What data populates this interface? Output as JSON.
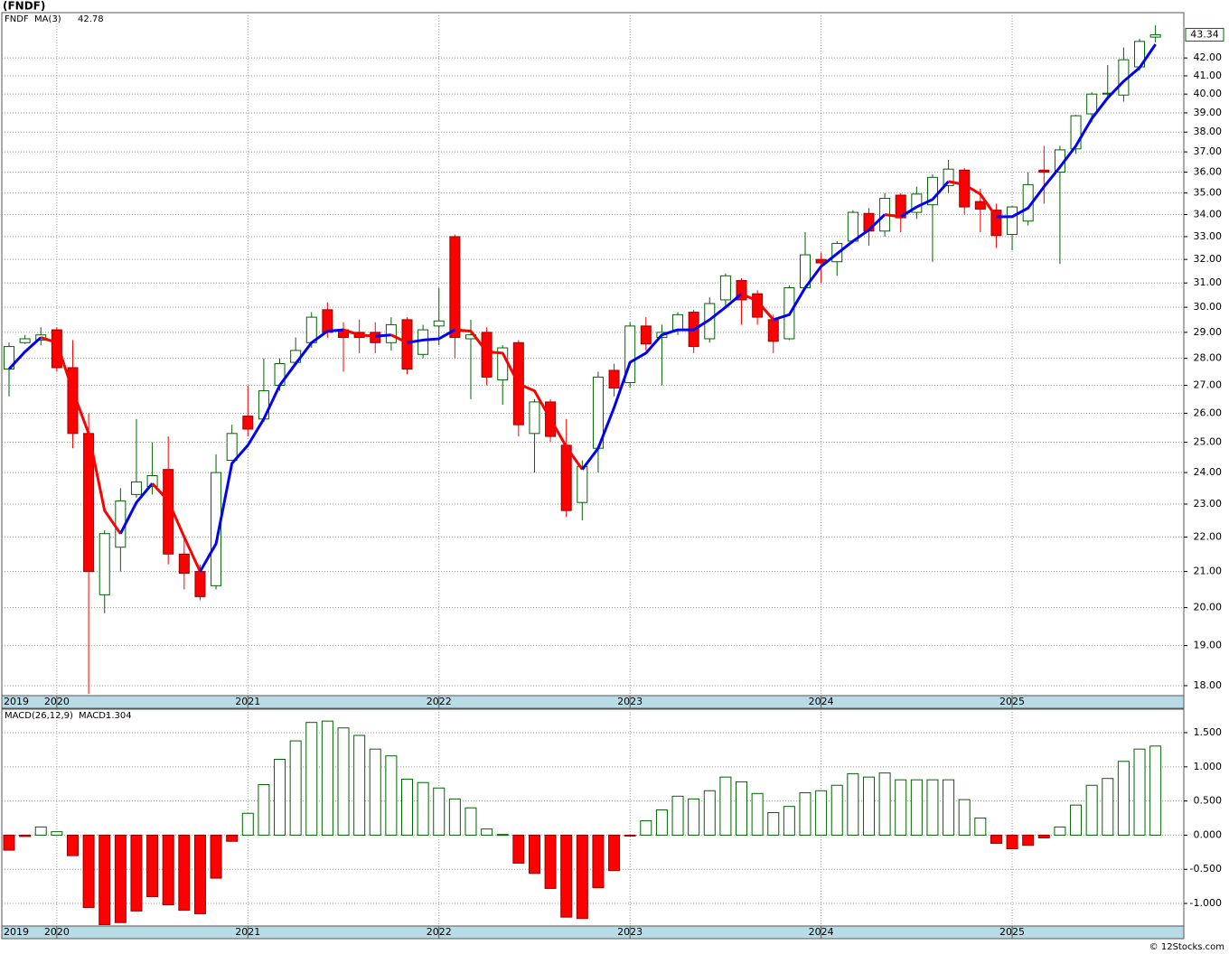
{
  "chart_data": [
    {
      "type": "candlestick",
      "title": "(FNDF)",
      "log": true,
      "categories": [
        "2019",
        null,
        null,
        "2020",
        null,
        null,
        null,
        null,
        null,
        null,
        null,
        null,
        null,
        null,
        null,
        "2021",
        null,
        null,
        null,
        null,
        null,
        null,
        null,
        null,
        null,
        null,
        null,
        "2022",
        null,
        null,
        null,
        null,
        null,
        null,
        null,
        null,
        null,
        null,
        null,
        "2023",
        null,
        null,
        null,
        null,
        null,
        null,
        null,
        null,
        null,
        null,
        null,
        "2024",
        null,
        null,
        null,
        null,
        null,
        null,
        null,
        null,
        null,
        null,
        null,
        "2025",
        null,
        null,
        null,
        null,
        null,
        null,
        null,
        null,
        null
      ],
      "ylim": [
        17.76,
        44.65
      ],
      "yticks": [
        {
          "value": 18,
          "label": "18.00"
        },
        {
          "value": 19,
          "label": "19.00"
        },
        {
          "value": 20,
          "label": "20.00"
        },
        {
          "value": 21,
          "label": "21.00"
        },
        {
          "value": 22,
          "label": "22.00"
        },
        {
          "value": 23,
          "label": "23.00"
        },
        {
          "value": 24,
          "label": "24.00"
        },
        {
          "value": 25,
          "label": "25.00"
        },
        {
          "value": 26,
          "label": "26.00"
        },
        {
          "value": 27,
          "label": "27.00"
        },
        {
          "value": 28,
          "label": "28.00"
        },
        {
          "value": 29,
          "label": "29.00"
        },
        {
          "value": 30,
          "label": "30.00"
        },
        {
          "value": 31,
          "label": "31.00"
        },
        {
          "value": 32,
          "label": "32.00"
        },
        {
          "value": 33,
          "label": "33.00"
        },
        {
          "value": 34,
          "label": "34.00"
        },
        {
          "value": 35,
          "label": "35.00"
        },
        {
          "value": 36,
          "label": "36.00"
        },
        {
          "value": 37,
          "label": "37.00"
        },
        {
          "value": 38,
          "label": "38.00"
        },
        {
          "value": 39,
          "label": "39.00"
        },
        {
          "value": 40,
          "label": "40.00"
        },
        {
          "value": 41,
          "label": "41.00"
        },
        {
          "value": 42,
          "label": "42.00"
        }
      ],
      "grid": true,
      "series": [
        {
          "name": "FNDF",
          "color": "#006400",
          "down_color": "#ff0000",
          "open": [
            27.6,
            28.6,
            28.7,
            29.1,
            27.65,
            25.3,
            20.35,
            21.7,
            23.3,
            23.55,
            24.1,
            21.5,
            21.0,
            20.6,
            24.4,
            25.9,
            25.8,
            27.0,
            27.85,
            28.6,
            29.9,
            29.1,
            29.0,
            29.0,
            28.6,
            29.5,
            28.15,
            29.25,
            33.0,
            28.75,
            29.0,
            27.2,
            28.6,
            25.3,
            26.4,
            24.9,
            23.05,
            24.8,
            27.55,
            27.1,
            29.25,
            28.8,
            29.1,
            29.8,
            28.75,
            30.3,
            31.1,
            30.55,
            29.5,
            28.75,
            30.8,
            32.0,
            31.9,
            32.8,
            34.05,
            33.25,
            34.9,
            34.1,
            34.45,
            35.35,
            36.1,
            34.6,
            34.2,
            33.1,
            33.7,
            36.1,
            36.0,
            37.15,
            38.95,
            40.0,
            39.95,
            41.5,
            43.2
          ],
          "high": [
            28.6,
            28.9,
            29.2,
            29.2,
            28.7,
            26.0,
            22.2,
            23.5,
            25.8,
            25.0,
            25.2,
            22.0,
            21.2,
            24.6,
            25.6,
            27.0,
            28.0,
            28.0,
            28.8,
            29.8,
            30.2,
            29.4,
            29.5,
            29.4,
            29.6,
            29.6,
            29.3,
            30.8,
            33.1,
            29.5,
            29.2,
            28.5,
            28.7,
            26.5,
            26.5,
            25.8,
            24.4,
            27.5,
            27.8,
            29.4,
            29.6,
            29.3,
            29.8,
            29.9,
            30.4,
            31.4,
            31.2,
            30.7,
            29.7,
            30.9,
            33.2,
            32.3,
            32.8,
            34.2,
            34.3,
            35.0,
            35.0,
            35.3,
            35.9,
            36.6,
            36.2,
            35.2,
            34.5,
            34.4,
            36.0,
            37.3,
            37.3,
            38.9,
            40.1,
            41.6,
            42.6,
            43.1,
            43.9
          ],
          "low": [
            26.6,
            28.55,
            28.5,
            27.5,
            24.8,
            17.8,
            19.85,
            21.0,
            23.2,
            23.3,
            21.2,
            20.5,
            20.2,
            20.5,
            24.4,
            25.2,
            25.7,
            26.8,
            27.8,
            28.4,
            28.8,
            27.5,
            28.2,
            28.2,
            28.3,
            27.4,
            28.0,
            28.5,
            28.0,
            26.5,
            27.0,
            26.3,
            25.2,
            24.0,
            25.0,
            22.6,
            22.5,
            24.0,
            26.6,
            26.9,
            28.3,
            27.0,
            28.9,
            28.2,
            28.6,
            30.0,
            29.3,
            29.3,
            28.2,
            28.7,
            30.8,
            31.0,
            31.3,
            32.7,
            32.6,
            33.0,
            33.2,
            33.8,
            31.9,
            35.0,
            34.0,
            33.2,
            32.5,
            32.4,
            33.5,
            34.5,
            31.8,
            36.9,
            38.5,
            39.7,
            39.6,
            41.3,
            42.9
          ],
          "close": [
            28.45,
            28.75,
            28.9,
            27.65,
            25.3,
            21.0,
            22.1,
            23.1,
            23.7,
            23.9,
            21.5,
            20.95,
            20.3,
            24.0,
            25.3,
            25.45,
            26.8,
            27.8,
            28.3,
            29.6,
            29.0,
            28.8,
            28.8,
            28.6,
            29.3,
            27.6,
            29.1,
            29.45,
            28.8,
            28.9,
            27.3,
            28.4,
            25.6,
            26.4,
            25.2,
            22.8,
            24.2,
            27.3,
            26.9,
            29.25,
            28.55,
            29.0,
            29.7,
            28.45,
            30.15,
            31.3,
            30.3,
            29.6,
            28.65,
            30.8,
            32.2,
            31.85,
            32.7,
            34.1,
            33.25,
            34.75,
            33.85,
            34.95,
            35.75,
            36.15,
            34.35,
            34.25,
            33.05,
            34.35,
            35.4,
            36.0,
            37.1,
            38.85,
            40.0,
            40.05,
            41.9,
            42.95,
            43.34
          ]
        },
        {
          "name": "MA(3)",
          "color": "#0000ff",
          "down_color": "#ff0000",
          "values": [
            27.6,
            28.25,
            28.8,
            28.6,
            26.8,
            25.3,
            22.8,
            22.1,
            23.05,
            23.65,
            23.1,
            22.0,
            21.0,
            21.8,
            24.3,
            24.9,
            25.8,
            27.0,
            27.8,
            28.6,
            29.05,
            29.1,
            28.9,
            28.85,
            28.9,
            28.6,
            28.7,
            28.75,
            29.1,
            29.05,
            28.25,
            28.2,
            27.05,
            26.8,
            25.8,
            24.85,
            24.1,
            24.8,
            26.2,
            27.85,
            28.2,
            28.9,
            29.1,
            29.1,
            29.5,
            30.0,
            30.55,
            30.25,
            29.5,
            29.7,
            30.8,
            31.7,
            32.25,
            32.8,
            33.3,
            34.0,
            33.9,
            34.35,
            34.7,
            35.55,
            35.4,
            34.95,
            33.9,
            33.9,
            34.3,
            35.3,
            36.25,
            37.3,
            38.7,
            39.8,
            40.7,
            41.45,
            42.78
          ]
        }
      ]
    },
    {
      "type": "bar",
      "title": "MACD(26,12,9)",
      "categories": [
        "2019",
        null,
        null,
        "2020",
        null,
        null,
        null,
        null,
        null,
        null,
        null,
        null,
        null,
        null,
        null,
        "2021",
        null,
        null,
        null,
        null,
        null,
        null,
        null,
        null,
        null,
        null,
        null,
        "2022",
        null,
        null,
        null,
        null,
        null,
        null,
        null,
        null,
        null,
        null,
        null,
        "2023",
        null,
        null,
        null,
        null,
        null,
        null,
        null,
        null,
        null,
        null,
        null,
        "2024",
        null,
        null,
        null,
        null,
        null,
        null,
        null,
        null,
        null,
        null,
        null,
        "2025",
        null,
        null,
        null,
        null,
        null,
        null,
        null,
        null,
        null
      ],
      "ylim": [
        -1.33,
        1.844
      ],
      "yticks": [
        {
          "value": -1,
          "label": "-1.000"
        },
        {
          "value": -0.5,
          "label": "-0.500"
        },
        {
          "value": 0,
          "label": "0.000"
        },
        {
          "value": 0.5,
          "label": "0.500"
        },
        {
          "value": 1,
          "label": "1.000"
        },
        {
          "value": 1.5,
          "label": "1.500"
        }
      ],
      "grid": true,
      "series": [
        {
          "name": "MACD:",
          "color": "#006400",
          "down_color": "#ff0000",
          "values": [
            -0.22,
            -0.02,
            0.12,
            0.05,
            -0.3,
            -1.06,
            -1.31,
            -1.28,
            -1.11,
            -0.9,
            -1.02,
            -1.1,
            -1.15,
            -0.63,
            -0.09,
            0.32,
            0.74,
            1.11,
            1.38,
            1.65,
            1.67,
            1.57,
            1.46,
            1.26,
            1.16,
            0.82,
            0.77,
            0.69,
            0.53,
            0.4,
            0.09,
            0.01,
            -0.41,
            -0.56,
            -0.78,
            -1.2,
            -1.22,
            -0.77,
            -0.52,
            -0.01,
            0.21,
            0.37,
            0.57,
            0.53,
            0.65,
            0.85,
            0.78,
            0.61,
            0.33,
            0.42,
            0.62,
            0.65,
            0.73,
            0.9,
            0.85,
            0.91,
            0.81,
            0.81,
            0.81,
            0.81,
            0.52,
            0.25,
            -0.12,
            -0.2,
            -0.15,
            -0.04,
            0.12,
            0.44,
            0.73,
            0.83,
            1.08,
            1.26,
            1.304
          ]
        }
      ]
    }
  ],
  "footer": "© 12Stocks.com"
}
